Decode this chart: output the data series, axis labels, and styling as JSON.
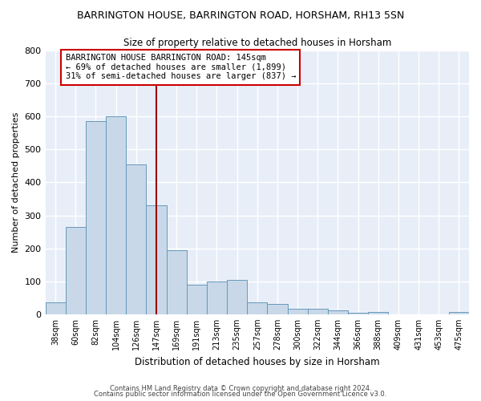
{
  "title1": "BARRINGTON HOUSE, BARRINGTON ROAD, HORSHAM, RH13 5SN",
  "title2": "Size of property relative to detached houses in Horsham",
  "xlabel": "Distribution of detached houses by size in Horsham",
  "ylabel": "Number of detached properties",
  "categories": [
    "38sqm",
    "60sqm",
    "82sqm",
    "104sqm",
    "126sqm",
    "147sqm",
    "169sqm",
    "191sqm",
    "213sqm",
    "235sqm",
    "257sqm",
    "278sqm",
    "300sqm",
    "322sqm",
    "344sqm",
    "366sqm",
    "388sqm",
    "409sqm",
    "431sqm",
    "453sqm",
    "475sqm"
  ],
  "values": [
    35,
    265,
    585,
    600,
    455,
    330,
    195,
    90,
    100,
    103,
    35,
    32,
    17,
    17,
    11,
    5,
    6,
    0,
    0,
    0,
    8
  ],
  "bar_color": "#c8d8e8",
  "bar_edge_color": "#6699bb",
  "highlight_index": 5,
  "highlight_line_color": "#990000",
  "annotation_text": "BARRINGTON HOUSE BARRINGTON ROAD: 145sqm\n← 69% of detached houses are smaller (1,899)\n31% of semi-detached houses are larger (837) →",
  "annotation_box_color": "#ffffff",
  "annotation_box_edge": "#cc0000",
  "ylim": [
    0,
    800
  ],
  "yticks": [
    0,
    100,
    200,
    300,
    400,
    500,
    600,
    700,
    800
  ],
  "background_color": "#e8eef8",
  "grid_color": "#ffffff",
  "fig_background": "#ffffff",
  "footer1": "Contains HM Land Registry data © Crown copyright and database right 2024.",
  "footer2": "Contains public sector information licensed under the Open Government Licence v3.0."
}
